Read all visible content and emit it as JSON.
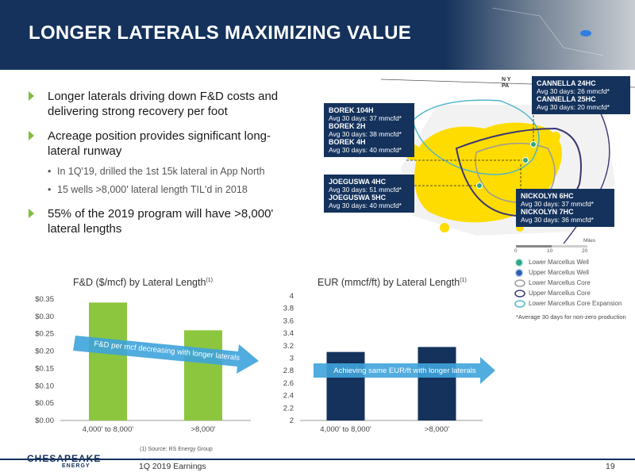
{
  "header": {
    "title": "LONGER LATERALS MAXIMIZING VALUE"
  },
  "bullets": [
    {
      "text": "Longer laterals driving down F&D costs and delivering strong recovery per foot"
    },
    {
      "text": "Acreage position provides significant long-lateral runway",
      "subs": [
        "In 1Q'19, drilled the 1st 15k lateral in App North",
        "15 wells >8,000' lateral length TIL'd in 2018"
      ]
    },
    {
      "text": "55% of the 2019 program will have >8,000' lateral lengths"
    }
  ],
  "map": {
    "state_label_top": "N Y",
    "state_label_bottom": "PA",
    "scale_label": "Miles",
    "scale_ticks": [
      "0",
      "10",
      "20"
    ],
    "callouts": {
      "borek": [
        {
          "name": "BOREK 104H",
          "avg": "Avg 30 days: 37 mmcfd*"
        },
        {
          "name": "BOREK 2H",
          "avg": "Avg 30 days: 38 mmcfd*"
        },
        {
          "name": "BOREK 4H",
          "avg": "Avg 30 days: 40 mmcfd*"
        }
      ],
      "joeguswa": [
        {
          "name": "JOEGUSWA 4HC",
          "avg": "Avg 30 days: 51 mmcfd*"
        },
        {
          "name": "JOEGUSWA 5HC",
          "avg": "Avg 30 days: 40 mmcfd*"
        }
      ],
      "cannella": [
        {
          "name": "CANNELLA 24HC",
          "avg": "Avg 30 days: 26 mmcfd*"
        },
        {
          "name": "CANNELLA 25HC",
          "avg": "Avg 30 days: 20 mmcfd*"
        }
      ],
      "nickolyn": [
        {
          "name": "NICKOLYN 6HC",
          "avg": "Avg 30 days: 37 mmcfd*"
        },
        {
          "name": "NICKOLYN 7HC",
          "avg": "Avg 30 days: 36 mmcfd*"
        }
      ]
    },
    "legend": [
      {
        "label": "Lower Marcellus Well",
        "color": "#2aa58a",
        "kind": "well"
      },
      {
        "label": "Upper Marcellus Well",
        "color": "#2a5fb0",
        "kind": "well"
      },
      {
        "label": "Lower Marcellus Core",
        "color": "#9a9a9a",
        "kind": "core"
      },
      {
        "label": "Upper Marcellus Core",
        "color": "#3b3773",
        "kind": "core"
      },
      {
        "label": "Lower Marcellus Core Expansion",
        "color": "#4fb7c9",
        "kind": "core"
      }
    ],
    "footnote": "*Average 30 days for non-zero production"
  },
  "chart_data": [
    {
      "type": "bar",
      "title": "F&D ($/mcf) by Lateral Length",
      "title_sup": "(1)",
      "categories": [
        "4,000' to 8,000'",
        ">8,000'"
      ],
      "values": [
        0.34,
        0.26
      ],
      "ylim": [
        0,
        0.35
      ],
      "yticks": [
        0,
        0.05,
        0.1,
        0.15,
        0.2,
        0.25,
        0.3,
        0.35
      ],
      "ytick_labels": [
        "$0.00",
        "$0.05",
        "$0.10",
        "$0.15",
        "$0.20",
        "$0.25",
        "$0.30",
        "$0.35"
      ],
      "color": "#8cc63f",
      "annotation": "F&D per mcf decreasing with longer laterals"
    },
    {
      "type": "bar",
      "title": "EUR (mmcf/ft) by Lateral Length",
      "title_sup": "(1)",
      "categories": [
        "4,000' to 8,000'",
        ">8,000'"
      ],
      "values": [
        3.1,
        3.18
      ],
      "ylim": [
        2,
        4
      ],
      "yticks": [
        2,
        2.2,
        2.4,
        2.6,
        2.8,
        3,
        3.2,
        3.4,
        3.6,
        3.8,
        4
      ],
      "ytick_labels": [
        "2",
        "2.2",
        "2.4",
        "2.6",
        "2.8",
        "3",
        "3.2",
        "3.4",
        "3.6",
        "3.8",
        "4"
      ],
      "color": "#14325c",
      "annotation": "Achieving same EUR/ft with longer laterals"
    }
  ],
  "footer": {
    "source": "(1)  Source: RS Energy Group",
    "left": "1Q 2019 Earnings",
    "page": "19",
    "logo_main": "CHESAPEAKE",
    "logo_sub": "ENERGY"
  }
}
